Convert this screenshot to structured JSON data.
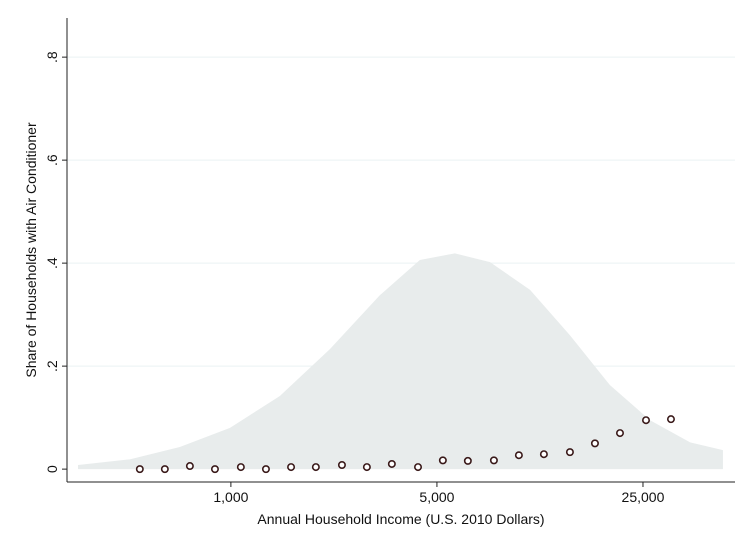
{
  "chart_data": {
    "type": "scatter",
    "x_label": "Annual Household Income (U.S. 2010 Dollars)",
    "y_label": "Share of Households with Air Conditioner",
    "xscale": "log",
    "xlim": [
      278,
      51300
    ],
    "xticks": [
      {
        "value": 1000,
        "label": "1,000"
      },
      {
        "value": 5000,
        "label": "5,000"
      },
      {
        "value": 25000,
        "label": "25,000"
      }
    ],
    "ylim": [
      -0.025,
      0.876
    ],
    "yticks": [
      0,
      {
        "value": 0.2,
        "label": ".2"
      },
      {
        "value": 0.4,
        "label": ".4"
      },
      {
        "value": 0.6,
        "label": ".6"
      },
      {
        "value": 0.8,
        "label": ".8"
      }
    ],
    "grid": true,
    "series": [
      {
        "type": "area",
        "color": "#e8ecec",
        "x": [
          303,
          454,
          671,
          993,
          1466,
          2167,
          3206,
          4375,
          5750,
          7570,
          10350,
          14130,
          19320,
          26420,
          36140,
          46690
        ],
        "values": [
          0.008,
          0.019,
          0.043,
          0.08,
          0.142,
          0.233,
          0.338,
          0.406,
          0.419,
          0.402,
          0.348,
          0.26,
          0.163,
          0.095,
          0.052,
          0.037
        ]
      },
      {
        "type": "scatter",
        "color": "#3a1a1a",
        "x": [
          491,
          597,
          726,
          883,
          1081,
          1315,
          1600,
          1942,
          2381,
          2893,
          3516,
          4313,
          5237,
          6366,
          7803,
          9484,
          11530,
          14130,
          17180,
          20890,
          25600,
          31110
        ],
        "values": [
          0,
          0,
          0.006,
          0,
          0.004,
          0,
          0.004,
          0.004,
          0.008,
          0.004,
          0.01,
          0.004,
          0.017,
          0.016,
          0.017,
          0.027,
          0.029,
          0.033,
          0.05,
          0.07,
          0.095,
          0.097
        ]
      }
    ]
  }
}
